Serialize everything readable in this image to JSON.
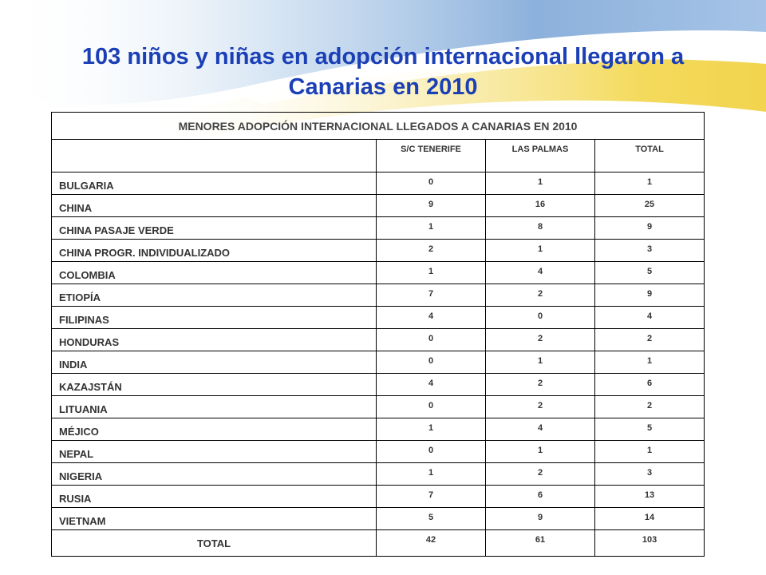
{
  "slide": {
    "title_line1": "103 niños y niñas en adopción internacional llegaron a",
    "title_line2": "Canarias en 2010"
  },
  "table": {
    "caption": "MENORES ADOPCIÓN INTERNACIONAL LLEGADOS A CANARIAS EN 2010",
    "columns": [
      "",
      "S/C TENERIFE",
      "LAS PALMAS",
      "TOTAL"
    ],
    "rows": [
      {
        "country": "BULGARIA",
        "tenerife": "0",
        "palmas": "1",
        "total": "1"
      },
      {
        "country": "CHINA",
        "tenerife": "9",
        "palmas": "16",
        "total": "25"
      },
      {
        "country": "CHINA PASAJE VERDE",
        "tenerife": "1",
        "palmas": "8",
        "total": "9"
      },
      {
        "country": "CHINA PROGR. INDIVIDUALIZADO",
        "tenerife": "2",
        "palmas": "1",
        "total": "3"
      },
      {
        "country": "COLOMBIA",
        "tenerife": "1",
        "palmas": "4",
        "total": "5"
      },
      {
        "country": "ETIOPÍA",
        "tenerife": "7",
        "palmas": "2",
        "total": "9"
      },
      {
        "country": "FILIPINAS",
        "tenerife": "4",
        "palmas": "0",
        "total": "4"
      },
      {
        "country": "HONDURAS",
        "tenerife": "0",
        "palmas": "2",
        "total": "2"
      },
      {
        "country": "INDIA",
        "tenerife": "0",
        "palmas": "1",
        "total": "1"
      },
      {
        "country": "KAZAJSTÁN",
        "tenerife": "4",
        "palmas": "2",
        "total": "6"
      },
      {
        "country": "LITUANIA",
        "tenerife": "0",
        "palmas": "2",
        "total": "2"
      },
      {
        "country": "MÉJICO",
        "tenerife": "1",
        "palmas": "4",
        "total": "5"
      },
      {
        "country": "NEPAL",
        "tenerife": "0",
        "palmas": "1",
        "total": "1"
      },
      {
        "country": "NIGERIA",
        "tenerife": "1",
        "palmas": "2",
        "total": "3"
      },
      {
        "country": "RUSIA",
        "tenerife": "7",
        "palmas": "6",
        "total": "13"
      },
      {
        "country": "VIETNAM",
        "tenerife": "5",
        "palmas": "9",
        "total": "14"
      }
    ],
    "total_row": {
      "label": "TOTAL",
      "tenerife": "42",
      "palmas": "61",
      "total": "103"
    }
  },
  "colors": {
    "title": "#1b3fb6",
    "swoosh_blue": "#7fa8d8",
    "swoosh_yellow": "#f3d64a"
  }
}
